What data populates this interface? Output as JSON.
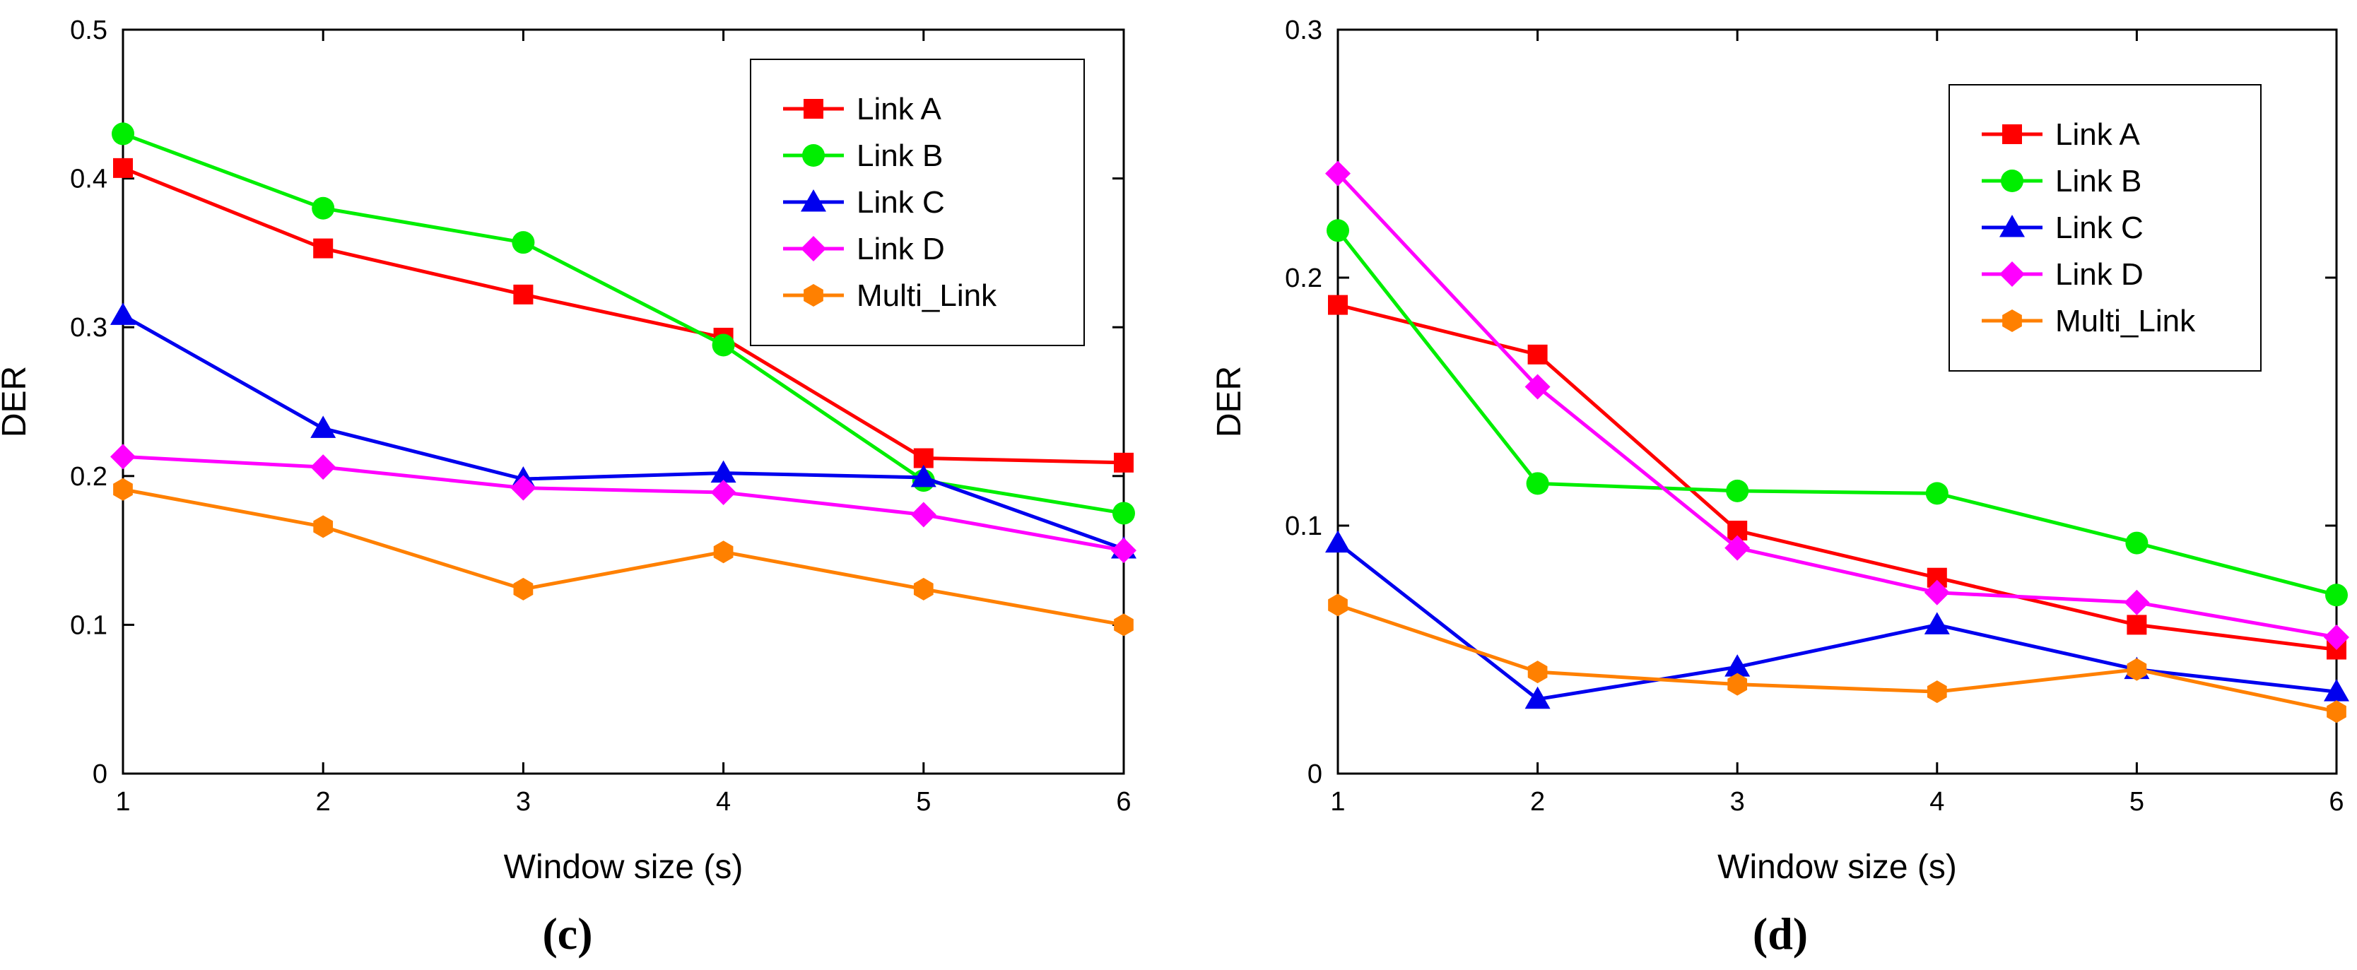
{
  "chart_data": [
    {
      "type": "line",
      "panel_label": "(c)",
      "xlabel": "Window size (s)",
      "ylabel": "DER",
      "x": [
        1,
        2,
        3,
        4,
        5,
        6
      ],
      "xlim": [
        1,
        6
      ],
      "ylim": [
        0,
        0.5
      ],
      "xticks": [
        "1",
        "2",
        "3",
        "4",
        "5",
        "6"
      ],
      "yticks": [
        "0",
        "0.1",
        "0.2",
        "0.3",
        "0.4",
        "0.5"
      ],
      "ytick_values": [
        0,
        0.1,
        0.2,
        0.3,
        0.4,
        0.5
      ],
      "grid": false,
      "legend_position": "top-right",
      "series": [
        {
          "name": "Link A",
          "color": "#ff0000",
          "marker": "square",
          "values": [
            0.407,
            0.353,
            0.322,
            0.293,
            0.212,
            0.209
          ]
        },
        {
          "name": "Link B",
          "color": "#00ee00",
          "marker": "circle",
          "values": [
            0.43,
            0.38,
            0.357,
            0.288,
            0.197,
            0.175
          ]
        },
        {
          "name": "Link C",
          "color": "#0000ee",
          "marker": "triangle",
          "values": [
            0.308,
            0.232,
            0.198,
            0.202,
            0.199,
            0.151
          ]
        },
        {
          "name": "Link D",
          "color": "#ff00ff",
          "marker": "diamond",
          "values": [
            0.213,
            0.206,
            0.192,
            0.189,
            0.174,
            0.15
          ]
        },
        {
          "name": "Multi_Link",
          "color": "#ff8000",
          "marker": "hexagon",
          "values": [
            0.191,
            0.166,
            0.124,
            0.149,
            0.124,
            0.1
          ]
        }
      ]
    },
    {
      "type": "line",
      "panel_label": "(d)",
      "xlabel": "Window size (s)",
      "ylabel": "DER",
      "x": [
        1,
        2,
        3,
        4,
        5,
        6
      ],
      "xlim": [
        1,
        6
      ],
      "ylim": [
        0,
        0.3
      ],
      "xticks": [
        "1",
        "2",
        "3",
        "4",
        "5",
        "6"
      ],
      "yticks": [
        "0",
        "0.1",
        "0.2",
        "0.3"
      ],
      "ytick_values": [
        0,
        0.1,
        0.2,
        0.3
      ],
      "grid": false,
      "legend_position": "top-right",
      "series": [
        {
          "name": "Link A",
          "color": "#ff0000",
          "marker": "square",
          "values": [
            0.189,
            0.169,
            0.098,
            0.079,
            0.06,
            0.05
          ]
        },
        {
          "name": "Link B",
          "color": "#00ee00",
          "marker": "circle",
          "values": [
            0.219,
            0.117,
            0.114,
            0.113,
            0.093,
            0.072
          ]
        },
        {
          "name": "Link C",
          "color": "#0000ee",
          "marker": "triangle",
          "values": [
            0.093,
            0.03,
            0.043,
            0.06,
            0.042,
            0.033
          ]
        },
        {
          "name": "Link D",
          "color": "#ff00ff",
          "marker": "diamond",
          "values": [
            0.242,
            0.156,
            0.091,
            0.073,
            0.069,
            0.055
          ]
        },
        {
          "name": "Multi_Link",
          "color": "#ff8000",
          "marker": "hexagon",
          "values": [
            0.068,
            0.041,
            0.036,
            0.033,
            0.042,
            0.025
          ]
        }
      ]
    }
  ]
}
